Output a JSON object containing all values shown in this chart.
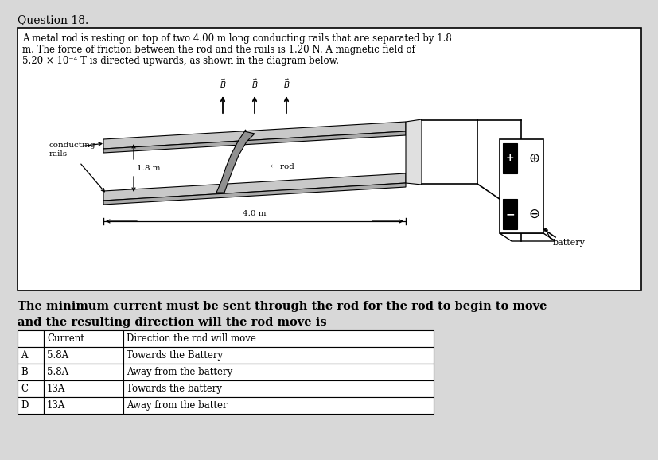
{
  "title": "Question 18.",
  "question_text_line1": "A metal rod is resting on top of two 4.00 m long conducting rails that are separated by 1.8",
  "question_text_line2": "m. The force of friction between the rod and the rails is 1.20 N. A magnetic field of",
  "question_text_line3": "5.20 × 10⁻⁴ T is directed upwards, as shown in the diagram below.",
  "bottom_text": "The minimum current must be sent through the rod for the rod to begin to move\nand the resulting direction will the rod move is",
  "table_headers": [
    "",
    "Current",
    "Direction the rod will move"
  ],
  "table_rows": [
    [
      "A",
      "5.8A",
      "Towards the Battery"
    ],
    [
      "B",
      "5.8A",
      "Away from the battery"
    ],
    [
      "C",
      "13A",
      "Towards the battery"
    ],
    [
      "D",
      "13A",
      "Away from the batter"
    ]
  ],
  "bg_color": "#d8d8d8",
  "box_bg": "#ffffff",
  "rail_color": "#c8c8c8",
  "rod_color": "#909090"
}
